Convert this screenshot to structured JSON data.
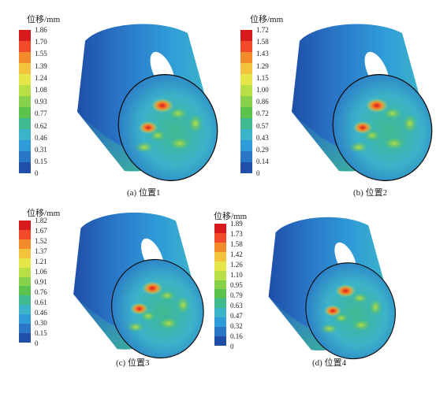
{
  "unit_label": "位移/mm",
  "legend_colors": [
    "#d7191c",
    "#f04a2a",
    "#f58a2a",
    "#f3c43b",
    "#e6e54a",
    "#b8df45",
    "#86d04a",
    "#5cc24e",
    "#3fb98e",
    "#3bb3c9",
    "#2f9bd8",
    "#2a77c8",
    "#1f4fa8"
  ],
  "panels": [
    {
      "unit": "位移/mm",
      "ticks": [
        "1.86",
        "1.70",
        "1.55",
        "1.39",
        "1.24",
        "1.08",
        "0.93",
        "0.77",
        "0.62",
        "0.46",
        "0.31",
        "0.15",
        "0"
      ],
      "caption": "(a) 位置1"
    },
    {
      "unit": "位移/mm",
      "ticks": [
        "1.72",
        "1.58",
        "1.43",
        "1.29",
        "1.15",
        "1.00",
        "0.86",
        "0.72",
        "0.57",
        "0.43",
        "0.29",
        "0.14",
        "0"
      ],
      "caption": "(b) 位置2"
    },
    {
      "unit": "位移/mm",
      "ticks": [
        "1.82",
        "1.67",
        "1.52",
        "1.37",
        "1.21",
        "1.06",
        "0.91",
        "0.76",
        "0.61",
        "0.46",
        "0.30",
        "0.15",
        "0"
      ],
      "caption": "(c) 位置3"
    },
    {
      "unit": "位移/mm",
      "ticks": [
        "1.89",
        "1.73",
        "1.58",
        "1.42",
        "1.26",
        "1.10",
        "0.95",
        "0.79",
        "0.63",
        "0.47",
        "0.32",
        "0.16",
        "0"
      ],
      "caption": "(d) 位置4"
    }
  ]
}
